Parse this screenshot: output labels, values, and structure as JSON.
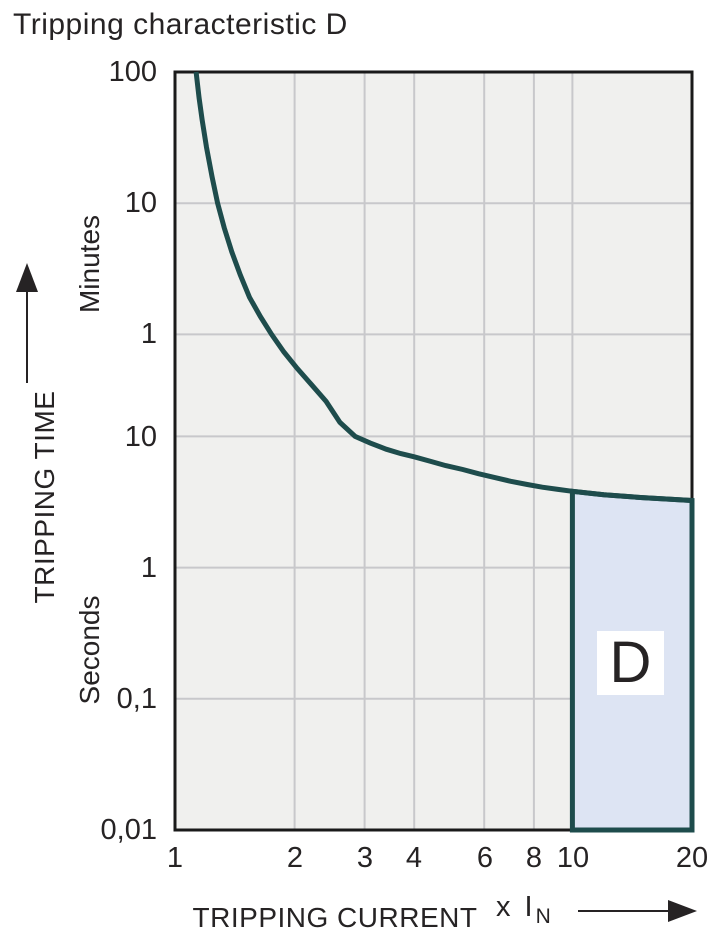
{
  "title": "Tripping characteristic D",
  "colors": {
    "curve": "#1e4c4c",
    "region_fill": "#dde4f3",
    "plot_bg": "#f0f0ee",
    "grid": "#c8c8cb",
    "border": "#1a1a1a",
    "text": "#262324"
  },
  "chart_data": {
    "type": "line",
    "title": "Tripping characteristic D",
    "xlabel": "TRIPPING CURRENT",
    "x_unit_prefix": "x I",
    "x_unit_sub": "N",
    "ylabel": "TRIPPING TIME",
    "y_unit_upper": "Minutes",
    "y_unit_lower": "Seconds",
    "x_scale": "log",
    "y_scale": "log",
    "xlim": [
      1,
      20
    ],
    "ylim_seconds": [
      0.01,
      6000
    ],
    "x_ticks": [
      {
        "label": "1",
        "value": 1
      },
      {
        "label": "2",
        "value": 2
      },
      {
        "label": "3",
        "value": 3
      },
      {
        "label": "4",
        "value": 4
      },
      {
        "label": "6",
        "value": 6
      },
      {
        "label": "8",
        "value": 8
      },
      {
        "label": "10",
        "value": 10
      },
      {
        "label": "20",
        "value": 20
      }
    ],
    "y_ticks": [
      {
        "label": "100",
        "unit": "minutes",
        "seconds": 6000
      },
      {
        "label": "10",
        "unit": "minutes",
        "seconds": 600
      },
      {
        "label": "1",
        "unit": "minutes",
        "seconds": 60
      },
      {
        "label": "10",
        "unit": "seconds",
        "seconds": 10
      },
      {
        "label": "1",
        "unit": "seconds",
        "seconds": 1
      },
      {
        "label": "0,1",
        "unit": "seconds",
        "seconds": 0.1
      },
      {
        "label": "0,01",
        "unit": "seconds",
        "seconds": 0.01
      }
    ],
    "gridlines": {
      "x": [
        2,
        3,
        4,
        6,
        8,
        10
      ],
      "y_seconds": [
        600,
        60,
        10,
        1,
        0.1
      ]
    },
    "series": [
      {
        "name": "Tripping characteristic D",
        "points": [
          [
            1.13,
            6000
          ],
          [
            1.15,
            3800
          ],
          [
            1.17,
            2600
          ],
          [
            1.2,
            1600
          ],
          [
            1.24,
            950
          ],
          [
            1.28,
            600
          ],
          [
            1.33,
            390
          ],
          [
            1.39,
            255
          ],
          [
            1.46,
            170
          ],
          [
            1.54,
            115
          ],
          [
            1.64,
            82
          ],
          [
            1.75,
            60
          ],
          [
            1.88,
            44
          ],
          [
            2.03,
            33
          ],
          [
            2.2,
            25
          ],
          [
            2.4,
            18.5
          ],
          [
            2.6,
            12.8
          ],
          [
            2.84,
            10
          ],
          [
            3.1,
            8.9
          ],
          [
            3.4,
            8.0
          ],
          [
            3.7,
            7.4
          ],
          [
            4.0,
            7.0
          ],
          [
            4.4,
            6.45
          ],
          [
            4.8,
            6.0
          ],
          [
            5.3,
            5.6
          ],
          [
            5.8,
            5.2
          ],
          [
            6.4,
            4.85
          ],
          [
            7.0,
            4.55
          ],
          [
            7.7,
            4.3
          ],
          [
            8.4,
            4.1
          ],
          [
            9.2,
            3.95
          ],
          [
            10,
            3.82
          ],
          [
            11,
            3.7
          ],
          [
            12,
            3.6
          ],
          [
            13.5,
            3.5
          ],
          [
            15,
            3.42
          ],
          [
            17,
            3.34
          ],
          [
            20,
            3.25
          ]
        ]
      }
    ],
    "region": {
      "label": "D",
      "x_range": [
        10,
        20
      ],
      "t_bottom_seconds": 0.01
    }
  }
}
